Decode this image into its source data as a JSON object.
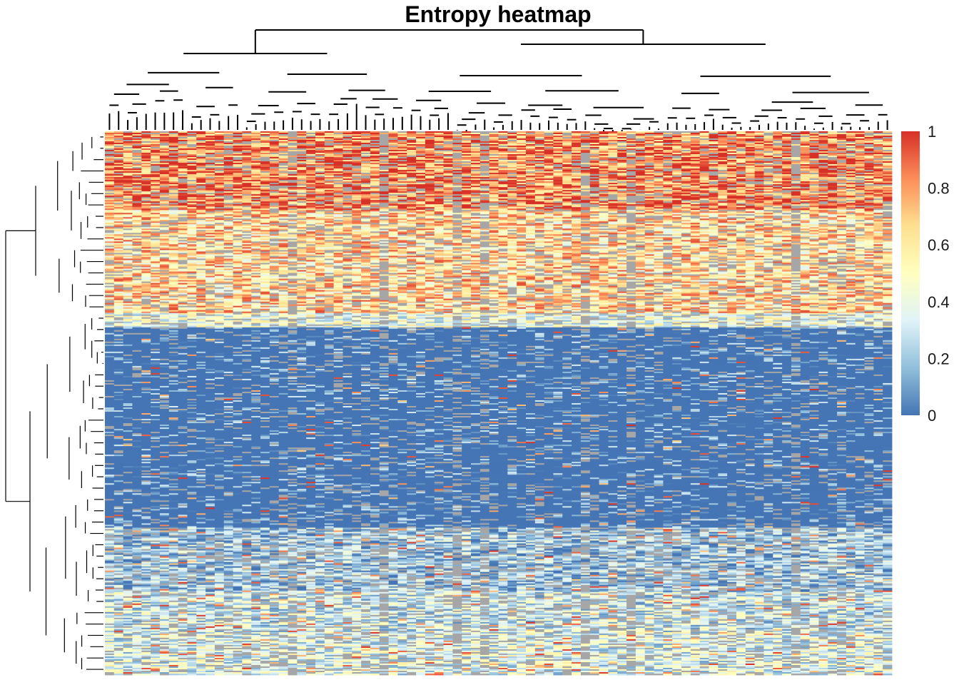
{
  "chart_data": {
    "type": "heatmap",
    "title": "Entropy heatmap",
    "value_range": [
      0,
      1
    ],
    "missing_color": "#A6A6A6",
    "color_scale": [
      "#4575B4",
      "#91BFDB",
      "#E0F3F8",
      "#FFFFBF",
      "#FEE090",
      "#FC8D59",
      "#D73027"
    ],
    "legend": {
      "position": "right",
      "tick_labels": [
        "0",
        "0.2",
        "0.4",
        "0.6",
        "0.8",
        "1"
      ],
      "tick_values": [
        0,
        0.2,
        0.4,
        0.6,
        0.8,
        1
      ]
    },
    "column_count": 86,
    "row_count": 380,
    "row_clusters": [
      {
        "rows": 55,
        "typical_value": 0.85
      },
      {
        "rows": 72,
        "typical_value": 0.65
      },
      {
        "rows": 10,
        "typical_value": 0.4
      },
      {
        "rows": 140,
        "typical_value": 0.07
      },
      {
        "rows": 45,
        "typical_value": 0.2
      },
      {
        "rows": 28,
        "typical_value": 0.3
      },
      {
        "rows": 30,
        "typical_value": 0.35
      }
    ],
    "column_dendrogram": true,
    "row_dendrogram": true
  }
}
